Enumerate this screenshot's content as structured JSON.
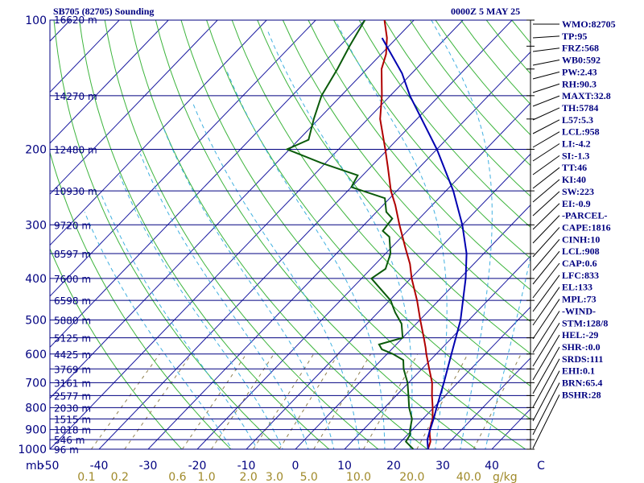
{
  "header": {
    "station": "SB705 (82705) Sounding",
    "time": "0000Z  5 MAY 25"
  },
  "indices": [
    "WMO:82705",
    "TP:95",
    "FRZ:568",
    "WB0:592",
    "PW:2.43",
    "RH:90.3",
    "MAXT:32.8",
    "TH:5784",
    "L57:5.3",
    "LCL:958",
    "LI:-4.2",
    "SI:-1.3",
    "TT:46",
    "KI:40",
    "SW:223",
    "EI:-0.9",
    "-PARCEL-",
    "CAPE:1816",
    "CINH:10",
    "LCL:908",
    "CAP:0.6",
    "LFC:833",
    "EL:133",
    "MPL:73",
    "-WIND-",
    "STM:128/8",
    "HEL:-29",
    "SHR-:0.0",
    "SRDS:111",
    "EHI:0.1",
    "BRN:65.4",
    "BSHR:28"
  ],
  "chart_data": {
    "type": "line",
    "title": "SB705 (82705) Sounding",
    "diagram": "Skew-T log-P",
    "pressure_axis": {
      "unit": "mb",
      "range": [
        1000,
        100
      ],
      "scale": "log",
      "tick_labels": [
        "100",
        "200",
        "300",
        "400",
        "500",
        "600",
        "700",
        "800",
        "900",
        "1000"
      ]
    },
    "temperature_axis": {
      "unit": "C",
      "range": [
        -50,
        50
      ],
      "tick_labels": [
        "-50",
        "-40",
        "-30",
        "-20",
        "-10",
        "0",
        "10",
        "20",
        "30",
        "40",
        "C"
      ]
    },
    "axis_corner_label": "mb",
    "mixing_ratio_axis": {
      "unit": "g/kg",
      "tick_labels": [
        "0.1",
        "0.2",
        "0.6",
        "1.0",
        "2.0",
        "3.0",
        "5.0",
        "10.0",
        "20.0",
        "40.0"
      ],
      "unit_label": "g/kg"
    },
    "height_labels": [
      {
        "p": 150,
        "label": "14270 m"
      },
      {
        "p": 200,
        "label": "12480 m"
      },
      {
        "p": 250,
        "label": "10930 m"
      },
      {
        "p": 300,
        "label": "9720 m"
      },
      {
        "p": 350,
        "label": "8597 m"
      },
      {
        "p": 400,
        "label": "7600 m"
      },
      {
        "p": 450,
        "label": "6598 m"
      },
      {
        "p": 500,
        "label": "5880 m"
      },
      {
        "p": 550,
        "label": "5125 m"
      },
      {
        "p": 600,
        "label": "4425 m"
      },
      {
        "p": 650,
        "label": "3769 m"
      },
      {
        "p": 700,
        "label": "3161 m"
      },
      {
        "p": 750,
        "label": "2577 m"
      },
      {
        "p": 800,
        "label": "2030 m"
      },
      {
        "p": 850,
        "label": "1515 m"
      },
      {
        "p": 900,
        "label": "1018 m"
      },
      {
        "p": 950,
        "label": "546 m"
      },
      {
        "p": 1000,
        "label": "96 m"
      }
    ],
    "top_height_label": "16620 m",
    "series": [
      {
        "kind": "temperature",
        "color": "#b00000",
        "points": [
          [
            1000,
            27
          ],
          [
            960,
            26
          ],
          [
            925,
            24.5
          ],
          [
            900,
            23.5
          ],
          [
            850,
            22
          ],
          [
            800,
            19.8
          ],
          [
            750,
            17.3
          ],
          [
            700,
            14.8
          ],
          [
            650,
            11.5
          ],
          [
            600,
            8.0
          ],
          [
            580,
            6.6
          ],
          [
            550,
            4.3
          ],
          [
            500,
            0.1
          ],
          [
            450,
            -4.4
          ],
          [
            400,
            -9.8
          ],
          [
            370,
            -13
          ],
          [
            340,
            -17
          ],
          [
            300,
            -22.8
          ],
          [
            270,
            -27.5
          ],
          [
            250,
            -31.2
          ],
          [
            220,
            -36.5
          ],
          [
            200,
            -40.5
          ],
          [
            170,
            -47.5
          ],
          [
            150,
            -51.7
          ],
          [
            130,
            -57
          ],
          [
            120,
            -59
          ],
          [
            110,
            -62
          ],
          [
            100,
            -66
          ]
        ]
      },
      {
        "kind": "dewpoint",
        "color": "#0a5a0a",
        "points": [
          [
            1000,
            24
          ],
          [
            960,
            21
          ],
          [
            925,
            20.5
          ],
          [
            900,
            19.5
          ],
          [
            850,
            17.8
          ],
          [
            800,
            15
          ],
          [
            750,
            12.5
          ],
          [
            700,
            9.8
          ],
          [
            650,
            6.3
          ],
          [
            620,
            4.5
          ],
          [
            600,
            1.2
          ],
          [
            585,
            -2
          ],
          [
            570,
            -3.5
          ],
          [
            550,
            0
          ],
          [
            510,
            -3
          ],
          [
            480,
            -6.5
          ],
          [
            450,
            -9.8
          ],
          [
            400,
            -18
          ],
          [
            380,
            -17
          ],
          [
            350,
            -19
          ],
          [
            320,
            -22.5
          ],
          [
            310,
            -25
          ],
          [
            290,
            -25.5
          ],
          [
            280,
            -28
          ],
          [
            260,
            -31
          ],
          [
            245,
            -40
          ],
          [
            230,
            -41
          ],
          [
            215,
            -51
          ],
          [
            200,
            -60.5
          ],
          [
            190,
            -58
          ],
          [
            170,
            -61
          ],
          [
            150,
            -64
          ],
          [
            130,
            -66
          ],
          [
            115,
            -68
          ],
          [
            100,
            -70
          ]
        ]
      },
      {
        "kind": "parcel",
        "color": "#0000b0",
        "points": [
          [
            1000,
            27
          ],
          [
            950,
            25
          ],
          [
            908,
            23.8
          ],
          [
            850,
            22.2
          ],
          [
            800,
            20.6
          ],
          [
            700,
            17.2
          ],
          [
            600,
            13.1
          ],
          [
            500,
            8.3
          ],
          [
            400,
            1.2
          ],
          [
            350,
            -3.5
          ],
          [
            300,
            -10
          ],
          [
            250,
            -18.5
          ],
          [
            200,
            -30
          ],
          [
            150,
            -46
          ],
          [
            133,
            -52
          ],
          [
            110,
            -63
          ]
        ]
      }
    ],
    "wind_levels_mb": [
      100,
      115,
      130,
      150,
      170,
      200,
      250,
      300,
      350,
      400,
      450,
      500,
      550,
      600,
      650,
      700,
      750,
      800,
      850,
      900,
      950,
      1000
    ],
    "grid": true
  }
}
